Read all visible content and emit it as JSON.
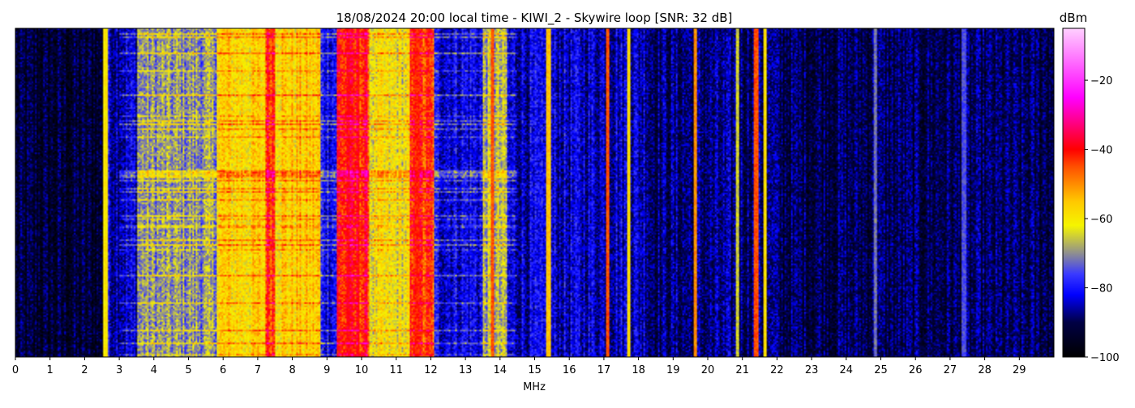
{
  "chart_data": {
    "type": "heatmap",
    "title": "18/08/2024 20:00 local time - KIWI_2 - Skywire loop [SNR: 32 dB]",
    "xlabel": "MHz",
    "ylabel": "",
    "xlim": [
      0,
      30
    ],
    "x_ticks": [
      0,
      1,
      2,
      3,
      4,
      5,
      6,
      7,
      8,
      9,
      10,
      11,
      12,
      13,
      14,
      15,
      16,
      17,
      18,
      19,
      20,
      21,
      22,
      23,
      24,
      25,
      26,
      27,
      28,
      29
    ],
    "colorbar": {
      "label": "dBm",
      "range": [
        -100,
        -5
      ],
      "ticks": [
        -20,
        -40,
        -60,
        -80,
        -100
      ],
      "colormap": [
        {
          "v": -100,
          "color": "#000000"
        },
        {
          "v": -90,
          "color": "#000044"
        },
        {
          "v": -82,
          "color": "#0000ff"
        },
        {
          "v": -76,
          "color": "#3a3aff"
        },
        {
          "v": -70,
          "color": "#8f8f8f"
        },
        {
          "v": -62,
          "color": "#f5f500"
        },
        {
          "v": -55,
          "color": "#ffc800"
        },
        {
          "v": -45,
          "color": "#ff5000"
        },
        {
          "v": -40,
          "color": "#ff0000"
        },
        {
          "v": -25,
          "color": "#ff00ff"
        },
        {
          "v": -5,
          "color": "#ffd0ff"
        }
      ]
    },
    "band_levels_dbm": [
      {
        "from": 0.0,
        "to": 2.55,
        "level": -93
      },
      {
        "from": 2.55,
        "to": 2.65,
        "level": -62
      },
      {
        "from": 2.65,
        "to": 3.5,
        "level": -84
      },
      {
        "from": 3.5,
        "to": 5.8,
        "level": -70
      },
      {
        "from": 5.8,
        "to": 7.2,
        "level": -58
      },
      {
        "from": 7.2,
        "to": 7.5,
        "level": -42
      },
      {
        "from": 7.5,
        "to": 8.8,
        "level": -57
      },
      {
        "from": 8.8,
        "to": 9.3,
        "level": -80
      },
      {
        "from": 9.3,
        "to": 10.2,
        "level": -42
      },
      {
        "from": 10.2,
        "to": 11.4,
        "level": -62
      },
      {
        "from": 11.4,
        "to": 12.1,
        "level": -45
      },
      {
        "from": 12.1,
        "to": 13.5,
        "level": -82
      },
      {
        "from": 13.5,
        "to": 14.2,
        "level": -68
      },
      {
        "from": 14.2,
        "to": 18.3,
        "level": -84
      },
      {
        "from": 18.3,
        "to": 22.0,
        "level": -88
      },
      {
        "from": 22.0,
        "to": 30.0,
        "level": -90
      }
    ],
    "strong_carriers_mhz": [
      {
        "f": 2.6,
        "level": -60
      },
      {
        "f": 9.6,
        "level": -40
      },
      {
        "f": 9.9,
        "level": -40
      },
      {
        "f": 11.6,
        "level": -42
      },
      {
        "f": 13.8,
        "level": -45
      },
      {
        "f": 15.4,
        "level": -55
      },
      {
        "f": 17.1,
        "level": -45
      },
      {
        "f": 17.7,
        "level": -58
      },
      {
        "f": 19.65,
        "level": -50
      },
      {
        "f": 20.85,
        "level": -65
      },
      {
        "f": 21.4,
        "level": -45
      },
      {
        "f": 21.65,
        "level": -58
      },
      {
        "f": 24.85,
        "level": -72
      },
      {
        "f": 27.4,
        "level": -75
      }
    ]
  }
}
